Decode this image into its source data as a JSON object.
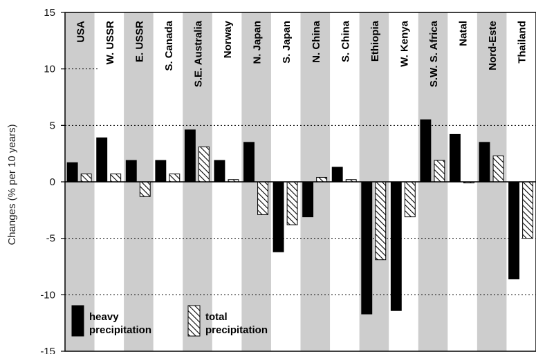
{
  "chart_data": {
    "type": "bar",
    "ylabel": "Changes (% per 10 years)",
    "ylim": [
      -15,
      15
    ],
    "yticks": [
      "15",
      "10",
      "5",
      "0",
      "-5",
      "-10",
      "-15"
    ],
    "gridlines": [
      10,
      5,
      -5,
      -10
    ],
    "categories": [
      "USA",
      "W. USSR",
      "E. USSR",
      "S. Canada",
      "S.E. Australia",
      "Norway",
      "N. Japan",
      "S. Japan",
      "N. China",
      "S. China",
      "Ethiopia",
      "W. Kenya",
      "S.W. S. Africa",
      "Natal",
      "Nord-Este",
      "Thailand"
    ],
    "series": [
      {
        "name": "heavy precipitation",
        "color": "#000000",
        "values": [
          1.7,
          3.9,
          1.9,
          1.9,
          4.6,
          1.9,
          3.5,
          -6.2,
          -3.1,
          1.3,
          -11.7,
          -11.4,
          5.5,
          4.2,
          3.5,
          -8.6
        ]
      },
      {
        "name": "total precipitation",
        "color": "#ffffff",
        "pattern": "hatched",
        "values": [
          0.7,
          0.7,
          -1.3,
          0.7,
          3.1,
          0.2,
          -2.9,
          -3.8,
          0.4,
          0.2,
          -6.9,
          -3.1,
          1.9,
          -0.1,
          2.3,
          -5.0
        ]
      }
    ],
    "legend": {
      "position": "bottom-left",
      "entries": [
        {
          "label_line1": "heavy",
          "label_line2": "precipitation"
        },
        {
          "label_line1": "total",
          "label_line2": "precipitation"
        }
      ]
    },
    "shading": "alternating gray columns",
    "band_color": "#cdcdcd"
  }
}
